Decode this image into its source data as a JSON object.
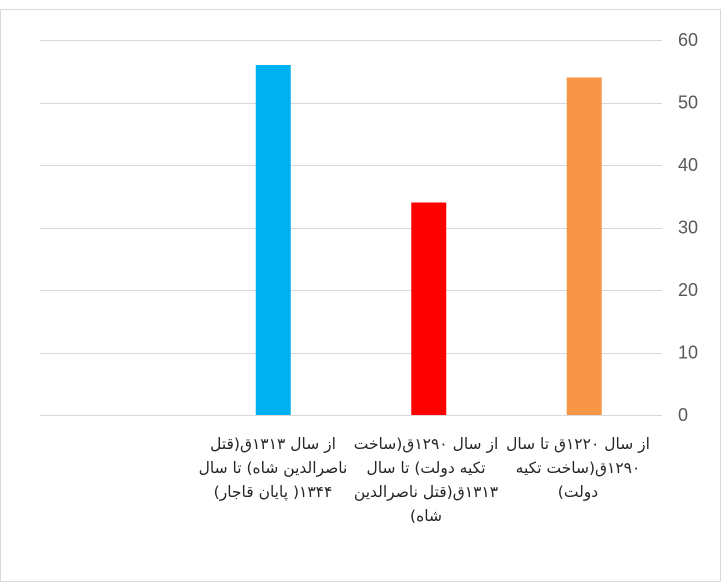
{
  "chart_data": {
    "type": "bar",
    "categories": [
      "از سال ۱۳۱۳ق(قتل ناصرالدین شاه) تا سال ۱۳۴۴( پایان قاجار)",
      "از سال ۱۲۹۰ق(ساخت تکیه دولت) تا سال ۱۳۱۳ق(قتل ناصرالدین شاه)",
      "از سال ۱۲۲۰ق تا سال ۱۲۹۰ق(ساخت تکیه دولت)"
    ],
    "values": [
      56,
      34,
      54
    ],
    "colors": [
      "#00b0f0",
      "#ff0000",
      "#f79646"
    ],
    "title": "",
    "xlabel": "",
    "ylabel": "",
    "ylim": [
      0,
      60
    ],
    "yticks": [
      0,
      10,
      20,
      30,
      40,
      50,
      60
    ],
    "ytick_labels": [
      "0",
      "10",
      "20",
      "30",
      "40",
      "50",
      "60"
    ],
    "y_axis_side": "right",
    "grid": true,
    "legend": "none",
    "gridline_color": "#d9d9d9",
    "border_color": "#d9d9d9"
  }
}
